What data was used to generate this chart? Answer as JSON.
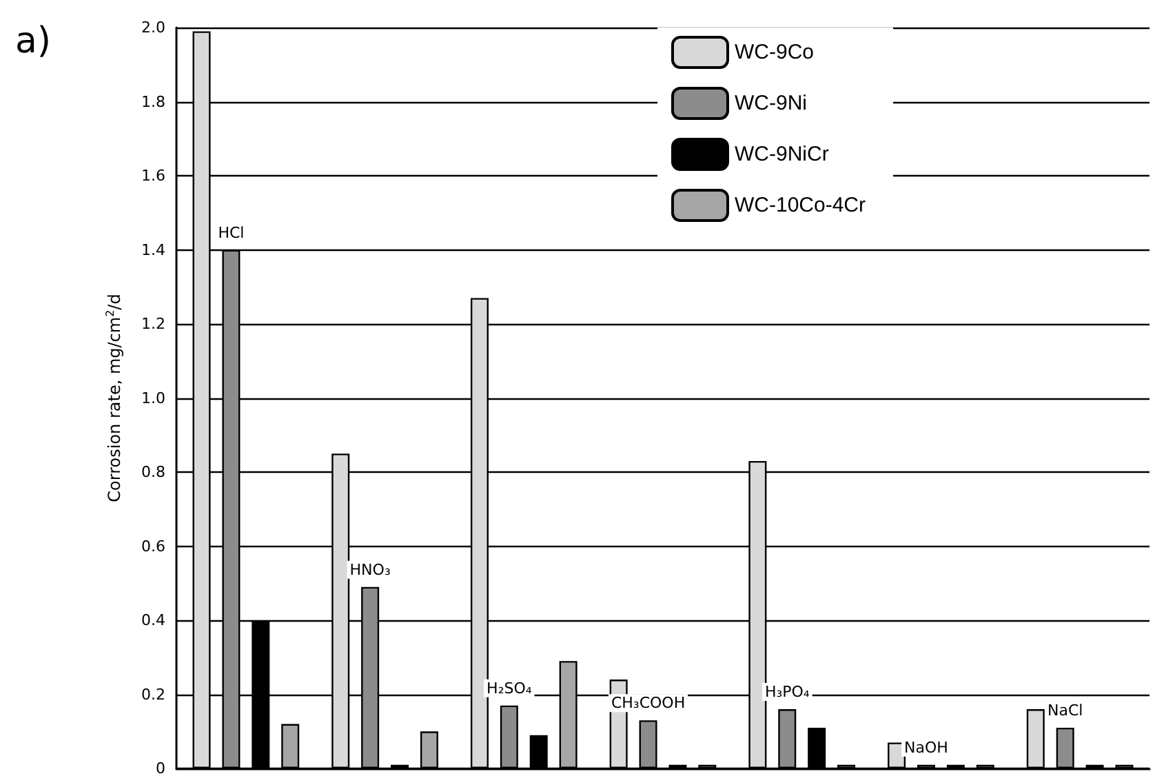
{
  "chart_data": {
    "type": "bar",
    "categories": [
      "HCl",
      "HNO₃",
      "H₂SO₄",
      "CH₃COOH",
      "H₃PO₄",
      "NaOH",
      "NaCl"
    ],
    "series": [
      {
        "name": "WC-9Co",
        "color": "#d9d9d9",
        "values": [
          1.99,
          0.85,
          1.27,
          0.24,
          0.83,
          0.07,
          0.16
        ]
      },
      {
        "name": "WC-9Ni",
        "color": "#8c8c8c",
        "values": [
          1.4,
          0.49,
          0.17,
          0.13,
          0.16,
          0.01,
          0.11
        ]
      },
      {
        "name": "WC-9NiCr",
        "color": "#000000",
        "values": [
          0.4,
          0.01,
          0.09,
          0.01,
          0.11,
          0.01,
          0.01
        ]
      },
      {
        "name": "WC-10Co-4Cr",
        "color": "#a6a6a6",
        "values": [
          0.12,
          0.1,
          0.29,
          0.01,
          0.01,
          0.01,
          0.01
        ]
      }
    ],
    "ylabel": "Corrosion rate, mg/cm$^{2}$/d",
    "ylim": [
      0,
      2.0
    ],
    "yticks": [
      0,
      {
        "value": 0.2,
        "label": "0.2"
      },
      {
        "value": 0.4,
        "label": "0.4"
      },
      {
        "value": 0.6,
        "label": "0.6"
      },
      {
        "value": 0.8,
        "label": "0.8"
      },
      {
        "value": 1.0,
        "label": "1.0"
      },
      {
        "value": 1.2,
        "label": "1.2"
      },
      {
        "value": 1.4,
        "label": "1.4"
      },
      {
        "value": 1.6,
        "label": "1.6"
      },
      {
        "value": 1.8,
        "label": "1.8"
      },
      {
        "value": 2.0,
        "label": "2.0"
      }
    ],
    "grid": "y",
    "legend": "top right",
    "tick_labels": "y",
    "annotations": [
      "a)"
    ]
  }
}
